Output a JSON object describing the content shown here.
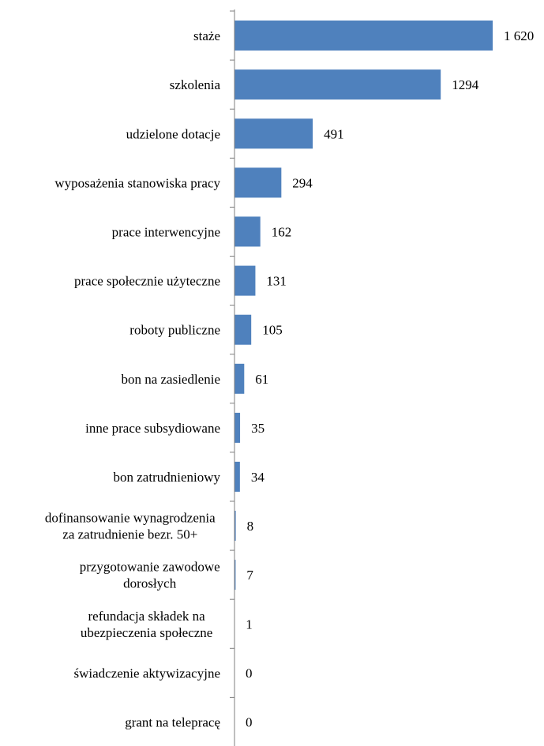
{
  "chart_data": {
    "type": "bar",
    "orientation": "horizontal",
    "categories": [
      "staże",
      "szkolenia",
      "udzielone dotacje",
      "wyposażenia stanowiska pracy",
      "prace interwencyjne",
      "prace społecznie użyteczne",
      "roboty publiczne",
      "bon na zasiedlenie",
      "inne prace subsydiowane",
      "bon zatrudnieniowy",
      "dofinansowanie wynagrodzenia za zatrudnienie bezr. 50+",
      "przygotowanie zawodowe dorosłych",
      "refundacja składek na ubezpieczenia społeczne",
      "świadczenie aktywizacyjne",
      "grant na telepracę"
    ],
    "category_lines": [
      [
        "staże"
      ],
      [
        "szkolenia"
      ],
      [
        "udzielone dotacje"
      ],
      [
        "wyposażenia stanowiska pracy"
      ],
      [
        "prace interwencyjne"
      ],
      [
        "prace społecznie użyteczne"
      ],
      [
        "roboty publiczne"
      ],
      [
        "bon na zasiedlenie"
      ],
      [
        "inne prace subsydiowane"
      ],
      [
        "bon zatrudnieniowy"
      ],
      [
        "dofinansowanie wynagrodzenia",
        "za zatrudnienie bezr. 50+"
      ],
      [
        "przygotowanie zawodowe",
        "dorosłych"
      ],
      [
        "refundacja składek na",
        "ubezpieczenia społeczne"
      ],
      [
        "świadczenie aktywizacyjne"
      ],
      [
        "grant na telepracę"
      ]
    ],
    "values": [
      1620,
      1294,
      491,
      294,
      162,
      131,
      105,
      61,
      35,
      34,
      8,
      7,
      1,
      0,
      0
    ],
    "value_labels": [
      "1 620",
      "1294",
      "491",
      "294",
      "162",
      "131",
      "105",
      "61",
      "35",
      "34",
      "8",
      "7",
      "1",
      "0",
      "0"
    ],
    "xlim": [
      0,
      1620
    ],
    "grid": false,
    "legend": "none",
    "bar_color": "#4f81bd",
    "axis_color": "#7f7f7f"
  }
}
